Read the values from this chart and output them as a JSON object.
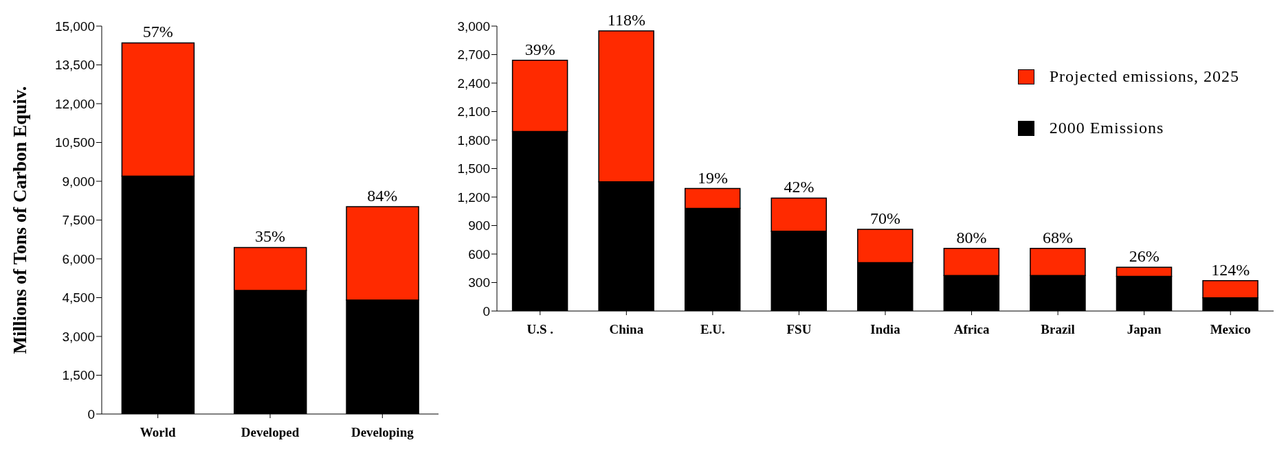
{
  "chart_data": [
    {
      "type": "bar",
      "stacked": true,
      "ylabel": "Millions of Tons of Carbon Equiv.",
      "categories": [
        "World",
        "Developed",
        "Developing"
      ],
      "series": [
        {
          "color": "#000000",
          "values": [
            9200,
            4780,
            4410
          ]
        },
        {
          "color": "#ff2a00",
          "values": [
            5150,
            1660,
            3610
          ]
        }
      ],
      "ylim": [
        0,
        15000
      ],
      "yticks": [
        {
          "value": 0,
          "label": "0"
        },
        {
          "value": 1500,
          "label": "1,500"
        },
        {
          "value": 3000,
          "label": "3,000"
        },
        {
          "value": 4500,
          "label": "4,500"
        },
        {
          "value": 6000,
          "label": "6,000"
        },
        {
          "value": 7500,
          "label": "7,500"
        },
        {
          "value": 9000,
          "label": "9,000"
        },
        {
          "value": 10500,
          "label": "10,500"
        },
        {
          "value": 12000,
          "label": "12,000"
        },
        {
          "value": 13500,
          "label": "13,500"
        },
        {
          "value": 15000,
          "label": "15,000"
        }
      ],
      "grid": false,
      "legend": false,
      "annotations": [
        {
          "text": "57%",
          "x": "World",
          "y": 14350
        },
        {
          "text": "35%",
          "x": "Developed",
          "y": 6440
        },
        {
          "text": "84%",
          "x": "Developing",
          "y": 8020
        }
      ]
    },
    {
      "type": "bar",
      "stacked": true,
      "categories": [
        "U.S .",
        "China",
        "E.U.",
        "FSU",
        "India",
        "Africa",
        "Brazil",
        "Japan",
        "Mexico"
      ],
      "series": [
        {
          "name": "2000 Emissions",
          "color": "#000000",
          "values": [
            1890,
            1360,
            1080,
            840,
            510,
            375,
            375,
            365,
            140
          ]
        },
        {
          "name": "Projected emissions, 2025",
          "color": "#ff2a00",
          "values": [
            750,
            1590,
            210,
            350,
            350,
            285,
            285,
            95,
            180
          ]
        }
      ],
      "ylim": [
        0,
        3000
      ],
      "yticks": [
        {
          "value": 0,
          "label": "0"
        },
        {
          "value": 300,
          "label": "300"
        },
        {
          "value": 600,
          "label": "600"
        },
        {
          "value": 900,
          "label": "900"
        },
        {
          "value": 1200,
          "label": "1,200"
        },
        {
          "value": 1500,
          "label": "1,500"
        },
        {
          "value": 1800,
          "label": "1,800"
        },
        {
          "value": 2100,
          "label": "2,100"
        },
        {
          "value": 2400,
          "label": "2,400"
        },
        {
          "value": 2700,
          "label": "2,700"
        },
        {
          "value": 3000,
          "label": "3,000"
        }
      ],
      "grid": false,
      "legend": "top right",
      "annotations": [
        {
          "text": "39%",
          "x": "U.S .",
          "y": 2640
        },
        {
          "text": "118%",
          "x": "China",
          "y": 2950
        },
        {
          "text": "19%",
          "x": "E.U.",
          "y": 1290
        },
        {
          "text": "42%",
          "x": "FSU",
          "y": 1190
        },
        {
          "text": "70%",
          "x": "India",
          "y": 860
        },
        {
          "text": "80%",
          "x": "Africa",
          "y": 660
        },
        {
          "text": "68%",
          "x": "Brazil",
          "y": 660
        },
        {
          "text": "26%",
          "x": "Japan",
          "y": 460
        },
        {
          "text": "124%",
          "x": "Mexico",
          "y": 320
        }
      ]
    }
  ]
}
